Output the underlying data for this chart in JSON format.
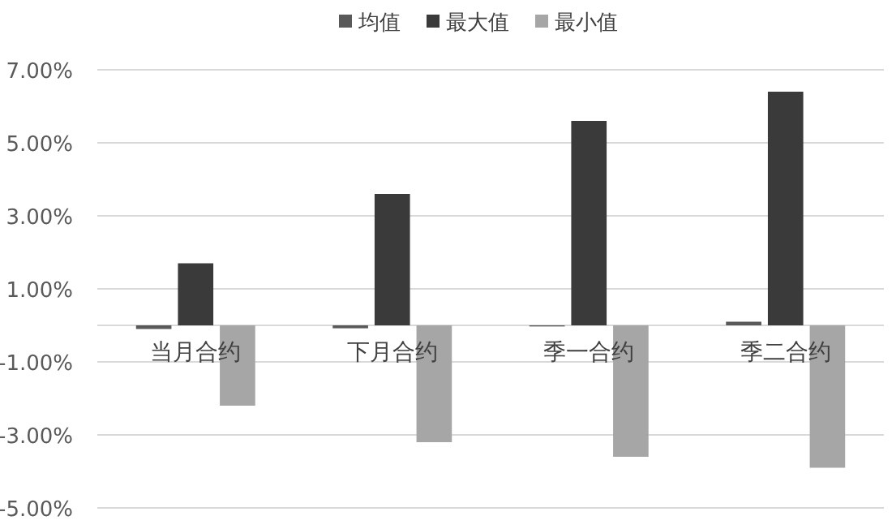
{
  "chart_data": {
    "type": "bar",
    "categories": [
      "当月合约",
      "下月合约",
      "季一合约",
      "季二合约"
    ],
    "series": [
      {
        "name": "均值",
        "color": "#595959",
        "values": [
          -0.1,
          -0.08,
          -0.03,
          0.1
        ]
      },
      {
        "name": "最大值",
        "color": "#3a3a3a",
        "values": [
          1.7,
          3.6,
          5.6,
          6.4
        ]
      },
      {
        "name": "最小值",
        "color": "#a6a6a6",
        "values": [
          -2.2,
          -3.2,
          -3.6,
          -3.9
        ]
      }
    ],
    "ylim": [
      -5,
      7
    ],
    "yticks": [
      {
        "value": -5,
        "label": "-5.00%"
      },
      {
        "value": -3,
        "label": "-3.00%"
      },
      {
        "value": -1,
        "label": "-1.00%"
      },
      {
        "value": 1,
        "label": "1.00%"
      },
      {
        "value": 3,
        "label": "3.00%"
      },
      {
        "value": 5,
        "label": "5.00%"
      },
      {
        "value": 7,
        "label": "7.00%"
      }
    ],
    "grid": "y",
    "legend": "top"
  }
}
